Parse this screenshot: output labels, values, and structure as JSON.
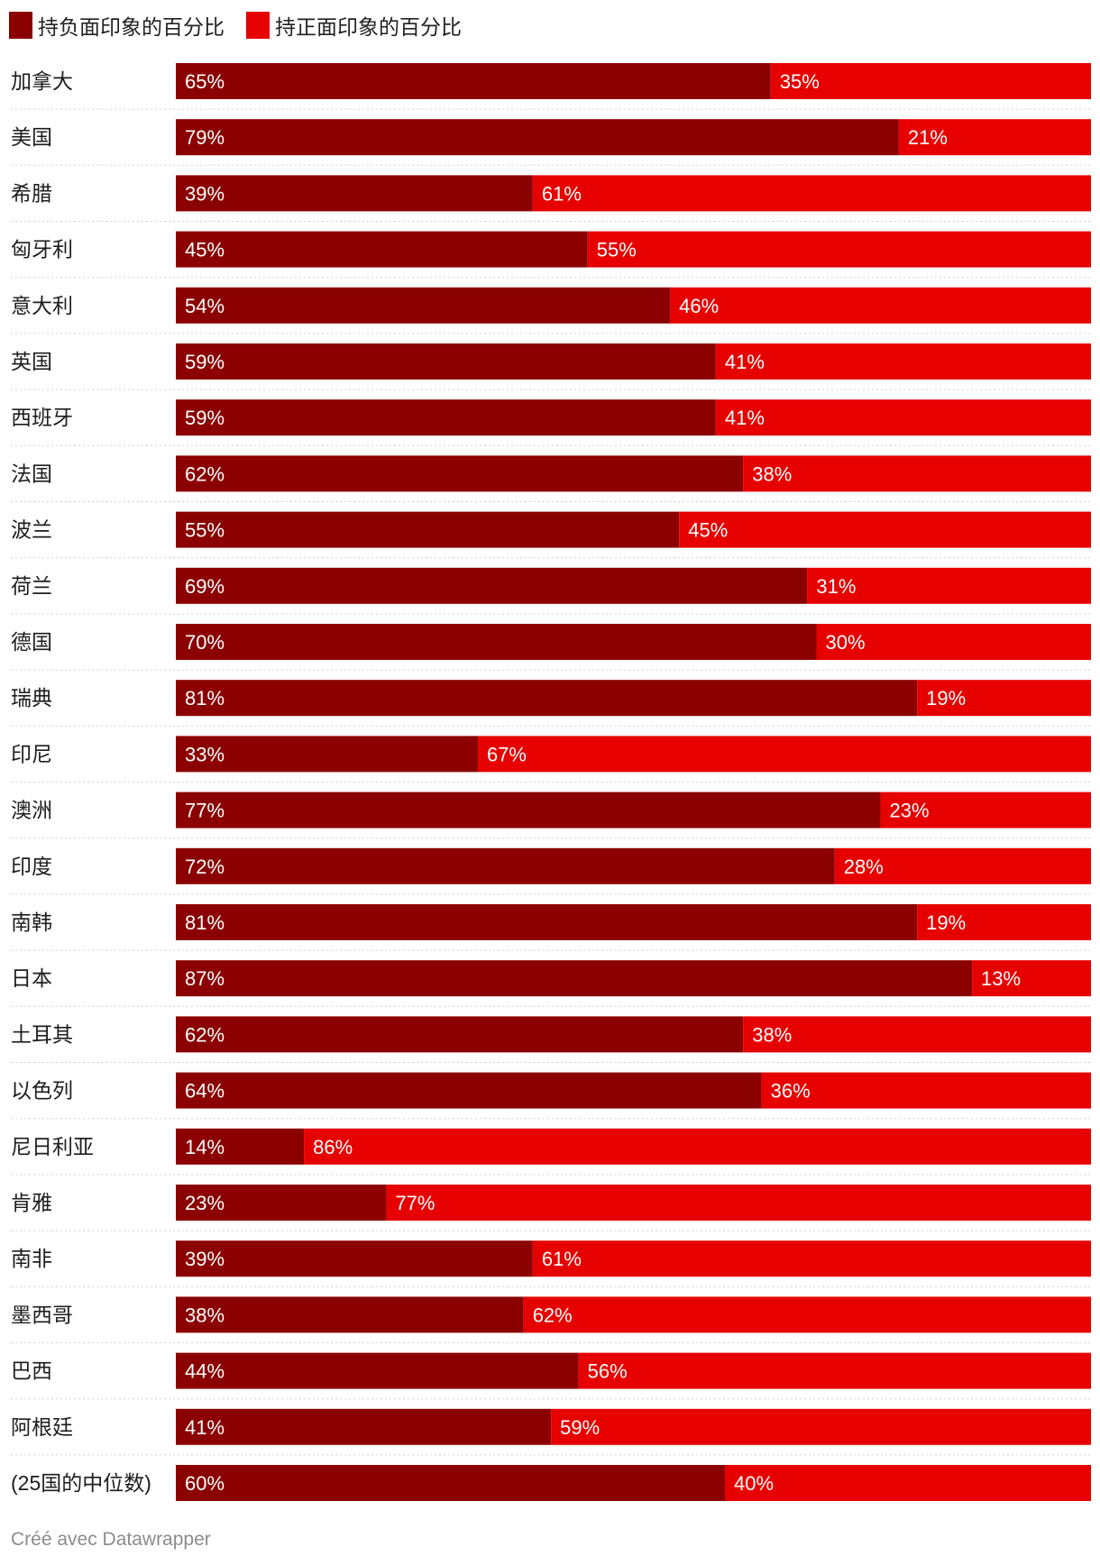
{
  "chart_data": {
    "type": "bar",
    "stacked": true,
    "orientation": "horizontal",
    "unit": "%",
    "categories": [
      "加拿大",
      "美国",
      "希腊",
      "匈牙利",
      "意大利",
      "英国",
      "西班牙",
      "法国",
      "波兰",
      "荷兰",
      "德国",
      "瑞典",
      "印尼",
      "澳洲",
      "印度",
      "南韩",
      "日本",
      "土耳其",
      "以色列",
      "尼日利亚",
      "肯雅",
      "南非",
      "墨西哥",
      "巴西",
      "阿根廷",
      "(25国的中位数)"
    ],
    "series": [
      {
        "name": "持负面印象的百分比",
        "color": "#8b0000",
        "values": [
          65,
          79,
          39,
          45,
          54,
          59,
          59,
          62,
          55,
          69,
          70,
          81,
          33,
          77,
          72,
          81,
          87,
          62,
          64,
          14,
          23,
          39,
          38,
          44,
          41,
          60
        ]
      },
      {
        "name": "持正面印象的百分比",
        "color": "#e60000",
        "values": [
          35,
          21,
          61,
          55,
          46,
          41,
          41,
          38,
          45,
          31,
          30,
          19,
          67,
          23,
          28,
          19,
          13,
          38,
          36,
          86,
          77,
          61,
          62,
          56,
          59,
          40
        ]
      }
    ],
    "xlim": [
      0,
      100
    ],
    "legend": "top-left",
    "grid": false
  },
  "footer": "Créé avec Datawrapper"
}
